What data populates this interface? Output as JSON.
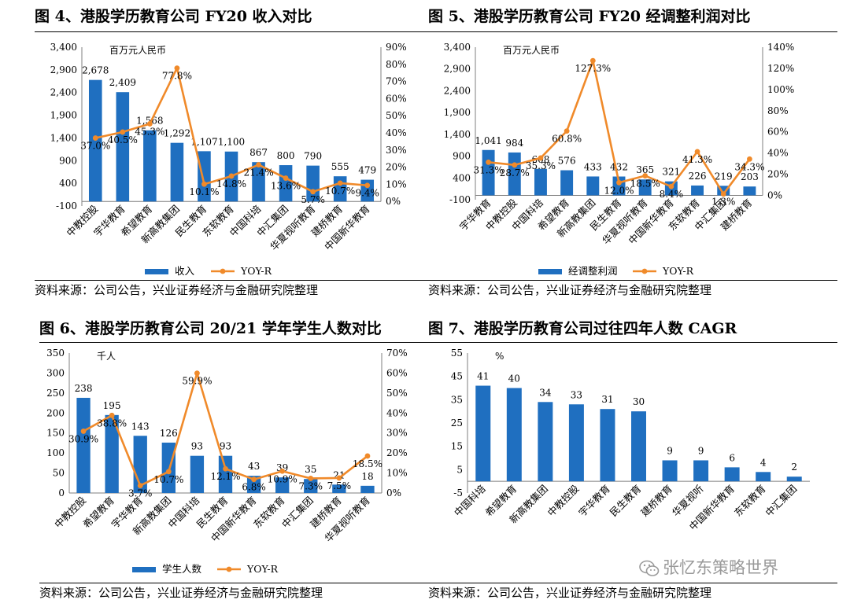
{
  "colors": {
    "bar": "#1F6FC0",
    "line": "#F08A2A"
  },
  "watermark": {
    "text": "张忆东策略世界",
    "icon": "wechat-icon"
  },
  "source": "资料来源：公司公告，兴业证券经济与金融研究院整理",
  "panels": [
    {
      "title": "图 4、港股学历教育公司 FY20 收入对比",
      "source": "资料来源：公司公告，兴业证券经济与金融研究院整理"
    },
    {
      "title": "图 5、港股学历教育公司 FY20 经调整利润对比",
      "source": "资料来源：公司公告，兴业证券经济与金融研究院整理"
    },
    {
      "title": "图 6、港股学历教育公司 20/21 学年学生人数对比",
      "source": "资料来源：公司公告，兴业证券经济与金融研究院整理"
    },
    {
      "title": "图 7、港股学历教育公司过往四年人数 CAGR",
      "source": "资料来源：公司公告，兴业证券经济与金融研究院整理"
    }
  ],
  "chart_data": [
    {
      "id": "fig4",
      "type": "bar+line",
      "unit_label": "百万元人民币",
      "categories": [
        "中教控股",
        "宇华教育",
        "希望教育",
        "新高教集团",
        "民生教育",
        "东软教育",
        "中国科培",
        "中汇集团",
        "华夏视听教育",
        "建桥教育",
        "中国新华教育"
      ],
      "values": [
        2678,
        2409,
        1568,
        1292,
        1107,
        1100,
        867,
        800,
        790,
        555,
        479
      ],
      "value_labels": [
        "2,678",
        "2,409",
        "1,568",
        "1,292",
        "1,107",
        "1,100",
        "867",
        "800",
        "790",
        "555",
        "479"
      ],
      "line_values": [
        37.0,
        40.5,
        45.3,
        77.8,
        10.1,
        14.8,
        21.4,
        13.6,
        5.7,
        10.7,
        9.4
      ],
      "line_labels": [
        "37.0%",
        "40.5%",
        "45.3%",
        "77.8%",
        "10.1%",
        "14.8%",
        "21.4%",
        "13.6%",
        "5.7%",
        "10.7%",
        "9.4%"
      ],
      "y_ticks": [
        -100,
        400,
        900,
        1400,
        1900,
        2400,
        2900,
        3400
      ],
      "y_tick_labels": [
        "-100",
        "400",
        "900",
        "1,400",
        "1,900",
        "2,400",
        "2,900",
        "3,400"
      ],
      "y_range": [
        -100,
        3400
      ],
      "y2_ticks": [
        0,
        10,
        20,
        30,
        40,
        50,
        60,
        70,
        80,
        90
      ],
      "y2_tick_labels": [
        "0%",
        "10%",
        "20%",
        "30%",
        "40%",
        "50%",
        "60%",
        "70%",
        "80%",
        "90%"
      ],
      "y2_range": [
        0,
        90
      ],
      "legend": [
        "收入",
        "YOY-R"
      ]
    },
    {
      "id": "fig5",
      "type": "bar+line",
      "unit_label": "百万元人民币",
      "categories": [
        "宇华教育",
        "中教控股",
        "中国科培",
        "希望教育",
        "新高教集团",
        "民生教育",
        "华夏视听教育",
        "中国新华教育",
        "东软教育",
        "中汇集团",
        "建桥教育"
      ],
      "values": [
        1041,
        984,
        608,
        576,
        433,
        432,
        365,
        321,
        226,
        219,
        203
      ],
      "value_labels": [
        "1,041",
        "984",
        "608",
        "576",
        "433",
        "432",
        "365",
        "321",
        "226",
        "219",
        "203"
      ],
      "line_values": [
        31.3,
        28.7,
        35.3,
        60.8,
        127.3,
        12.0,
        18.5,
        8.4,
        41.3,
        1.3,
        34.3
      ],
      "line_labels": [
        "31.3%",
        "28.7%",
        "35.3%",
        "60.8%",
        "127.3%",
        "12.0%",
        "18.5%",
        "8.4%",
        "41.3%",
        "1.3%",
        "34.3%"
      ],
      "y_ticks": [
        -100,
        400,
        900,
        1400,
        1900,
        2400,
        2900,
        3400
      ],
      "y_tick_labels": [
        "-100",
        "400",
        "900",
        "1,400",
        "1,900",
        "2,400",
        "2,900",
        "3,400"
      ],
      "y_range": [
        -100,
        3400
      ],
      "y2_ticks": [
        0,
        20,
        40,
        60,
        80,
        100,
        120,
        140
      ],
      "y2_tick_labels": [
        "0%",
        "20%",
        "40%",
        "60%",
        "80%",
        "100%",
        "120%",
        "140%"
      ],
      "y2_range": [
        0,
        140
      ],
      "legend": [
        "经调整利润",
        "YOY-R"
      ]
    },
    {
      "id": "fig6",
      "type": "bar+line",
      "unit_label": "千人",
      "categories": [
        "中教控股",
        "希望教育",
        "宇华教育",
        "新高教集团",
        "中国科培",
        "民生教育",
        "中国新华教育",
        "东软教育",
        "中汇集团",
        "建桥教育",
        "华夏视听教育"
      ],
      "values": [
        238,
        195,
        143,
        126,
        93,
        93,
        43,
        39,
        35,
        21,
        18
      ],
      "value_labels": [
        "238",
        "195",
        "143",
        "126",
        "93",
        "93",
        "43",
        "39",
        "35",
        "21",
        "18"
      ],
      "line_values": [
        30.9,
        38.8,
        3.7,
        10.7,
        59.9,
        12.1,
        6.8,
        10.9,
        7.3,
        7.5,
        18.5
      ],
      "line_labels": [
        "30.9%",
        "38.8%",
        "3.7%",
        "10.7%",
        "59.9%",
        "12.1%",
        "6.8%",
        "10.9%",
        "7.3%",
        "7.5%",
        "18.5%"
      ],
      "y_ticks": [
        0,
        50,
        100,
        150,
        200,
        250,
        300,
        350
      ],
      "y_tick_labels": [
        "0",
        "50",
        "100",
        "150",
        "200",
        "250",
        "300",
        "350"
      ],
      "y_range": [
        0,
        350
      ],
      "y2_ticks": [
        0,
        10,
        20,
        30,
        40,
        50,
        60,
        70
      ],
      "y2_tick_labels": [
        "0%",
        "10%",
        "20%",
        "30%",
        "40%",
        "50%",
        "60%",
        "70%"
      ],
      "y2_range": [
        0,
        70
      ],
      "legend": [
        "学生人数",
        "YOY-R"
      ]
    },
    {
      "id": "fig7",
      "type": "bar",
      "unit_label": "%",
      "categories": [
        "中国科培",
        "希望教育",
        "新高教集团",
        "中教控股",
        "宇华教育",
        "民生教育",
        "建桥教育",
        "华夏视听",
        "中国新华教育",
        "东软教育",
        "中汇集团"
      ],
      "values": [
        41,
        40,
        34,
        33,
        31,
        30,
        9,
        9,
        6,
        4,
        2
      ],
      "value_labels": [
        "41",
        "40",
        "34",
        "33",
        "31",
        "30",
        "9",
        "9",
        "6",
        "4",
        "2"
      ],
      "y_ticks": [
        -5,
        5,
        15,
        25,
        35,
        45,
        55
      ],
      "y_tick_labels": [
        "-5",
        "5",
        "15",
        "25",
        "35",
        "45",
        "55"
      ],
      "y_range": [
        -5,
        55
      ]
    }
  ]
}
